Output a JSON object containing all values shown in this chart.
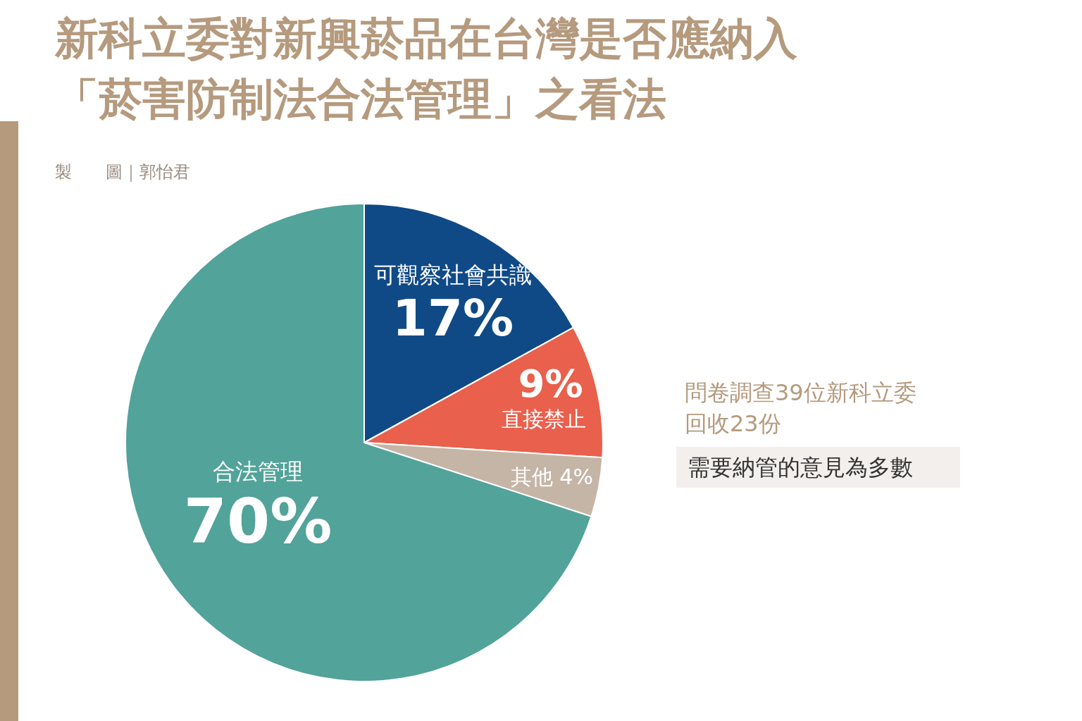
{
  "chart_data": {
    "type": "pie",
    "title": "新科立委對新興菸品在台灣是否應納入「菸害防制法合法管理」之看法",
    "categories": [
      "可觀察社會共識",
      "直接禁止",
      "其他",
      "合法管理"
    ],
    "values": [
      17,
      9,
      4,
      70
    ],
    "colors": [
      "#0f4a87",
      "#e9604c",
      "#c5b5a7",
      "#52a39a"
    ],
    "value_labels": [
      "17%",
      "9%",
      "4%",
      "70%"
    ],
    "legend": false,
    "annotations": [
      "製　　圖｜郭怡君",
      "問卷調查39位新科立委",
      "回收23份",
      "需要納管的意見為多數"
    ]
  }
}
